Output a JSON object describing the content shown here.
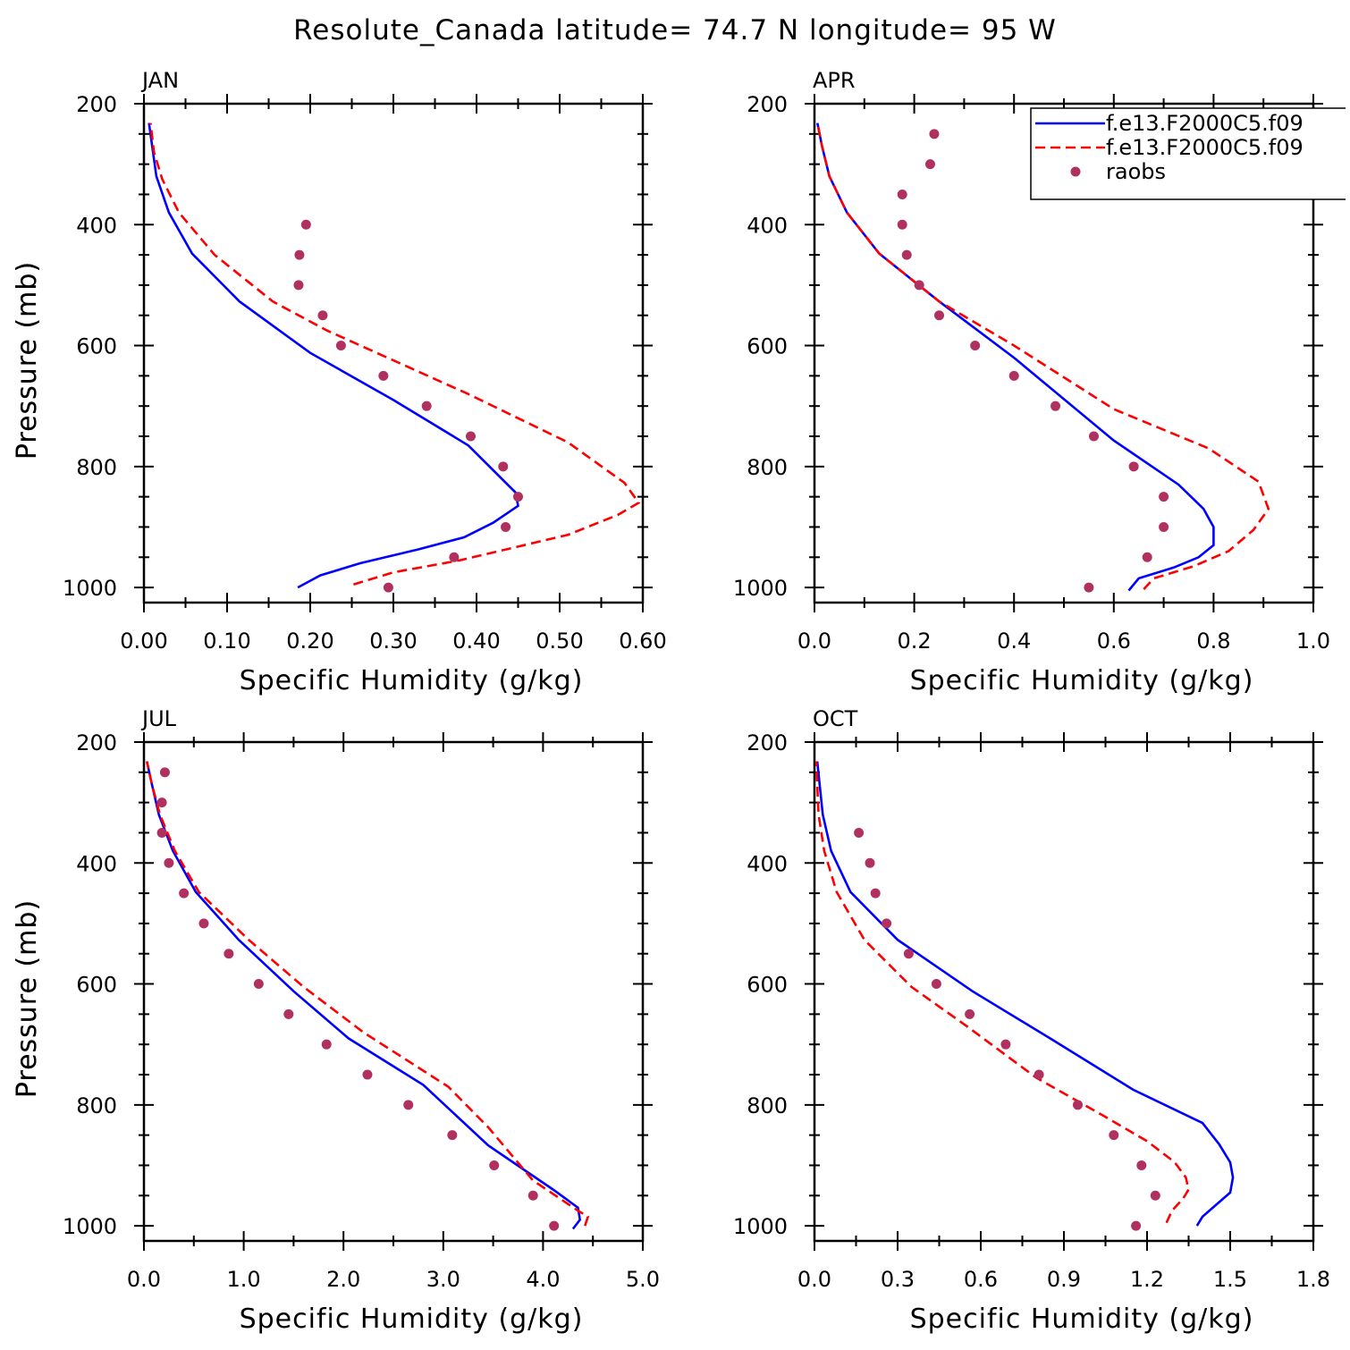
{
  "figure": {
    "title": "Resolute_Canada  latitude= 74.7 N longitude= 95 W",
    "legend": {
      "entries": [
        {
          "label": "f.e13.F2000C5.f09",
          "style": "solid",
          "color": "#0000ff"
        },
        {
          "label": "f.e13.F2000C5.f09",
          "style": "dashed",
          "color": "#ff0000"
        },
        {
          "label": "raobs",
          "style": "marker",
          "color": "#b03060"
        }
      ]
    }
  },
  "chart_data": [
    {
      "type": "line",
      "title": "JAN",
      "xlabel": "Specific Humidity (g/kg)",
      "ylabel": "Pressure (mb)",
      "xlim": [
        0,
        0.6
      ],
      "ylim": [
        1025,
        200
      ],
      "xticks": [
        0,
        0.1,
        0.2,
        0.3,
        0.4,
        0.5,
        0.6
      ],
      "xtick_labels": [
        "0.00",
        "0.10",
        "0.20",
        "0.30",
        "0.40",
        "0.50",
        "0.60"
      ],
      "yticks": [
        200,
        400,
        600,
        800,
        1000
      ],
      "ytick_labels": [
        "200",
        "400",
        "600",
        "800",
        "1000"
      ],
      "series": [
        {
          "name": "f.e13.F2000C5.f09",
          "style": "solid",
          "color": "#0000ff",
          "x": [
            0.185,
            0.212,
            0.26,
            0.33,
            0.385,
            0.42,
            0.45,
            0.447,
            0.39,
            0.3,
            0.2,
            0.115,
            0.058,
            0.03,
            0.015,
            0.006
          ],
          "y": [
            1000,
            980,
            960,
            937,
            917,
            893,
            865,
            843,
            765,
            690,
            612,
            527,
            448,
            380,
            320,
            232
          ]
        },
        {
          "name": "f.e13.F2000C5.f09",
          "style": "dashed",
          "color": "#ff0000",
          "x": [
            0.252,
            0.3,
            0.38,
            0.51,
            0.57,
            0.595,
            0.578,
            0.51,
            0.39,
            0.22,
            0.155,
            0.085,
            0.042,
            0.022,
            0.012,
            0.008
          ],
          "y": [
            995,
            975,
            955,
            913,
            880,
            860,
            827,
            760,
            680,
            575,
            527,
            450,
            380,
            325,
            280,
            232
          ]
        },
        {
          "name": "raobs",
          "style": "marker",
          "color": "#b03060",
          "x": [
            0.294,
            0.373,
            0.435,
            0.45,
            0.432,
            0.393,
            0.34,
            0.288,
            0.237,
            0.215,
            0.186,
            0.187,
            0.195
          ],
          "y": [
            1000,
            950,
            900,
            850,
            800,
            750,
            700,
            650,
            600,
            550,
            500,
            450,
            400
          ]
        }
      ]
    },
    {
      "type": "line",
      "title": "APR",
      "xlabel": "Specific Humidity (g/kg)",
      "ylabel": "Pressure (mb)",
      "xlim": [
        0,
        1.0
      ],
      "ylim": [
        1025,
        200
      ],
      "xticks": [
        0,
        0.2,
        0.4,
        0.6,
        0.8,
        1.0
      ],
      "xtick_labels": [
        "0.0",
        "0.2",
        "0.4",
        "0.6",
        "0.8",
        "1.0"
      ],
      "yticks": [
        200,
        400,
        600,
        800,
        1000
      ],
      "ytick_labels": [
        "200",
        "400",
        "600",
        "800",
        "1000"
      ],
      "series": [
        {
          "name": "f.e13.F2000C5.f09",
          "style": "solid",
          "color": "#0000ff",
          "x": [
            0.63,
            0.65,
            0.72,
            0.77,
            0.8,
            0.8,
            0.78,
            0.73,
            0.6,
            0.4,
            0.25,
            0.13,
            0.065,
            0.03,
            0.015,
            0.006
          ],
          "y": [
            1005,
            985,
            967,
            950,
            930,
            900,
            870,
            830,
            757,
            620,
            527,
            448,
            380,
            320,
            270,
            232
          ]
        },
        {
          "name": "f.e13.F2000C5.f09",
          "style": "dashed",
          "color": "#ff0000",
          "x": [
            0.66,
            0.68,
            0.76,
            0.83,
            0.88,
            0.91,
            0.89,
            0.79,
            0.6,
            0.4,
            0.25,
            0.13,
            0.065,
            0.03,
            0.015,
            0.006
          ],
          "y": [
            1003,
            985,
            965,
            940,
            905,
            870,
            825,
            770,
            705,
            600,
            527,
            448,
            380,
            320,
            270,
            232
          ]
        },
        {
          "name": "raobs",
          "style": "marker",
          "color": "#b03060",
          "x": [
            0.55,
            0.667,
            0.7,
            0.7,
            0.64,
            0.56,
            0.483,
            0.4,
            0.322,
            0.25,
            0.21,
            0.185,
            0.176,
            0.176,
            0.232,
            0.24
          ],
          "y": [
            1000,
            950,
            900,
            850,
            800,
            750,
            700,
            650,
            600,
            550,
            500,
            450,
            400,
            350,
            300,
            250
          ]
        }
      ]
    },
    {
      "type": "line",
      "title": "JUL",
      "xlabel": "Specific Humidity (g/kg)",
      "ylabel": "Pressure (mb)",
      "xlim": [
        0,
        5.0
      ],
      "ylim": [
        1025,
        200
      ],
      "xticks": [
        0,
        1,
        2,
        3,
        4,
        5
      ],
      "xtick_labels": [
        "0.0",
        "1.0",
        "2.0",
        "3.0",
        "4.0",
        "5.0"
      ],
      "yticks": [
        200,
        400,
        600,
        800,
        1000
      ],
      "ytick_labels": [
        "200",
        "400",
        "600",
        "800",
        "1000"
      ],
      "series": [
        {
          "name": "f.e13.F2000C5.f09",
          "style": "solid",
          "color": "#0000ff",
          "x": [
            4.3,
            4.37,
            4.35,
            4.1,
            3.45,
            2.8,
            2.05,
            1.5,
            0.95,
            0.52,
            0.29,
            0.15,
            0.08,
            0.03
          ],
          "y": [
            1005,
            990,
            970,
            940,
            867,
            767,
            690,
            612,
            527,
            448,
            380,
            320,
            270,
            232
          ]
        },
        {
          "name": "f.e13.F2000C5.f09",
          "style": "dashed",
          "color": "#ff0000",
          "x": [
            4.42,
            4.45,
            4.35,
            3.9,
            3.45,
            3.05,
            2.2,
            1.6,
            1.05,
            0.55,
            0.31,
            0.16,
            0.08,
            0.03
          ],
          "y": [
            1000,
            985,
            975,
            925,
            837,
            770,
            680,
            605,
            527,
            448,
            380,
            320,
            270,
            232
          ]
        },
        {
          "name": "raobs",
          "style": "marker",
          "color": "#b03060",
          "x": [
            4.11,
            3.9,
            3.51,
            3.09,
            2.65,
            2.24,
            1.83,
            1.45,
            1.15,
            0.85,
            0.6,
            0.4,
            0.25,
            0.18,
            0.18,
            0.21
          ],
          "y": [
            1000,
            950,
            900,
            850,
            800,
            750,
            700,
            650,
            600,
            550,
            500,
            450,
            400,
            350,
            300,
            250
          ]
        }
      ]
    },
    {
      "type": "line",
      "title": "OCT",
      "xlabel": "Specific Humidity (g/kg)",
      "ylabel": "Pressure (mb)",
      "xlim": [
        0,
        1.8
      ],
      "ylim": [
        1025,
        200
      ],
      "xticks": [
        0,
        0.3,
        0.6,
        0.9,
        1.2,
        1.5,
        1.8
      ],
      "xtick_labels": [
        "0.0",
        "0.3",
        "0.6",
        "0.9",
        "1.2",
        "1.5",
        "1.8"
      ],
      "yticks": [
        200,
        400,
        600,
        800,
        1000
      ],
      "ytick_labels": [
        "200",
        "400",
        "600",
        "800",
        "1000"
      ],
      "series": [
        {
          "name": "f.e13.F2000C5.f09",
          "style": "solid",
          "color": "#0000ff",
          "x": [
            1.38,
            1.4,
            1.45,
            1.5,
            1.51,
            1.5,
            1.46,
            1.4,
            1.15,
            0.85,
            0.57,
            0.3,
            0.13,
            0.06,
            0.03,
            0.01
          ],
          "y": [
            1000,
            985,
            965,
            945,
            920,
            895,
            865,
            830,
            775,
            690,
            612,
            527,
            448,
            380,
            320,
            232
          ]
        },
        {
          "name": "f.e13.F2000C5.f09",
          "style": "dashed",
          "color": "#ff0000",
          "x": [
            1.27,
            1.29,
            1.33,
            1.35,
            1.34,
            1.3,
            1.2,
            1.05,
            0.8,
            0.55,
            0.35,
            0.18,
            0.08,
            0.035,
            0.015,
            0.006
          ],
          "y": [
            995,
            975,
            955,
            940,
            920,
            895,
            860,
            820,
            755,
            670,
            605,
            527,
            448,
            380,
            320,
            232
          ]
        },
        {
          "name": "raobs",
          "style": "marker",
          "color": "#b03060",
          "x": [
            1.16,
            1.23,
            1.18,
            1.08,
            0.95,
            0.81,
            0.69,
            0.56,
            0.44,
            0.34,
            0.26,
            0.22,
            0.2,
            0.16
          ],
          "y": [
            1000,
            950,
            900,
            850,
            800,
            750,
            700,
            650,
            600,
            550,
            500,
            450,
            400,
            350
          ]
        }
      ]
    }
  ]
}
